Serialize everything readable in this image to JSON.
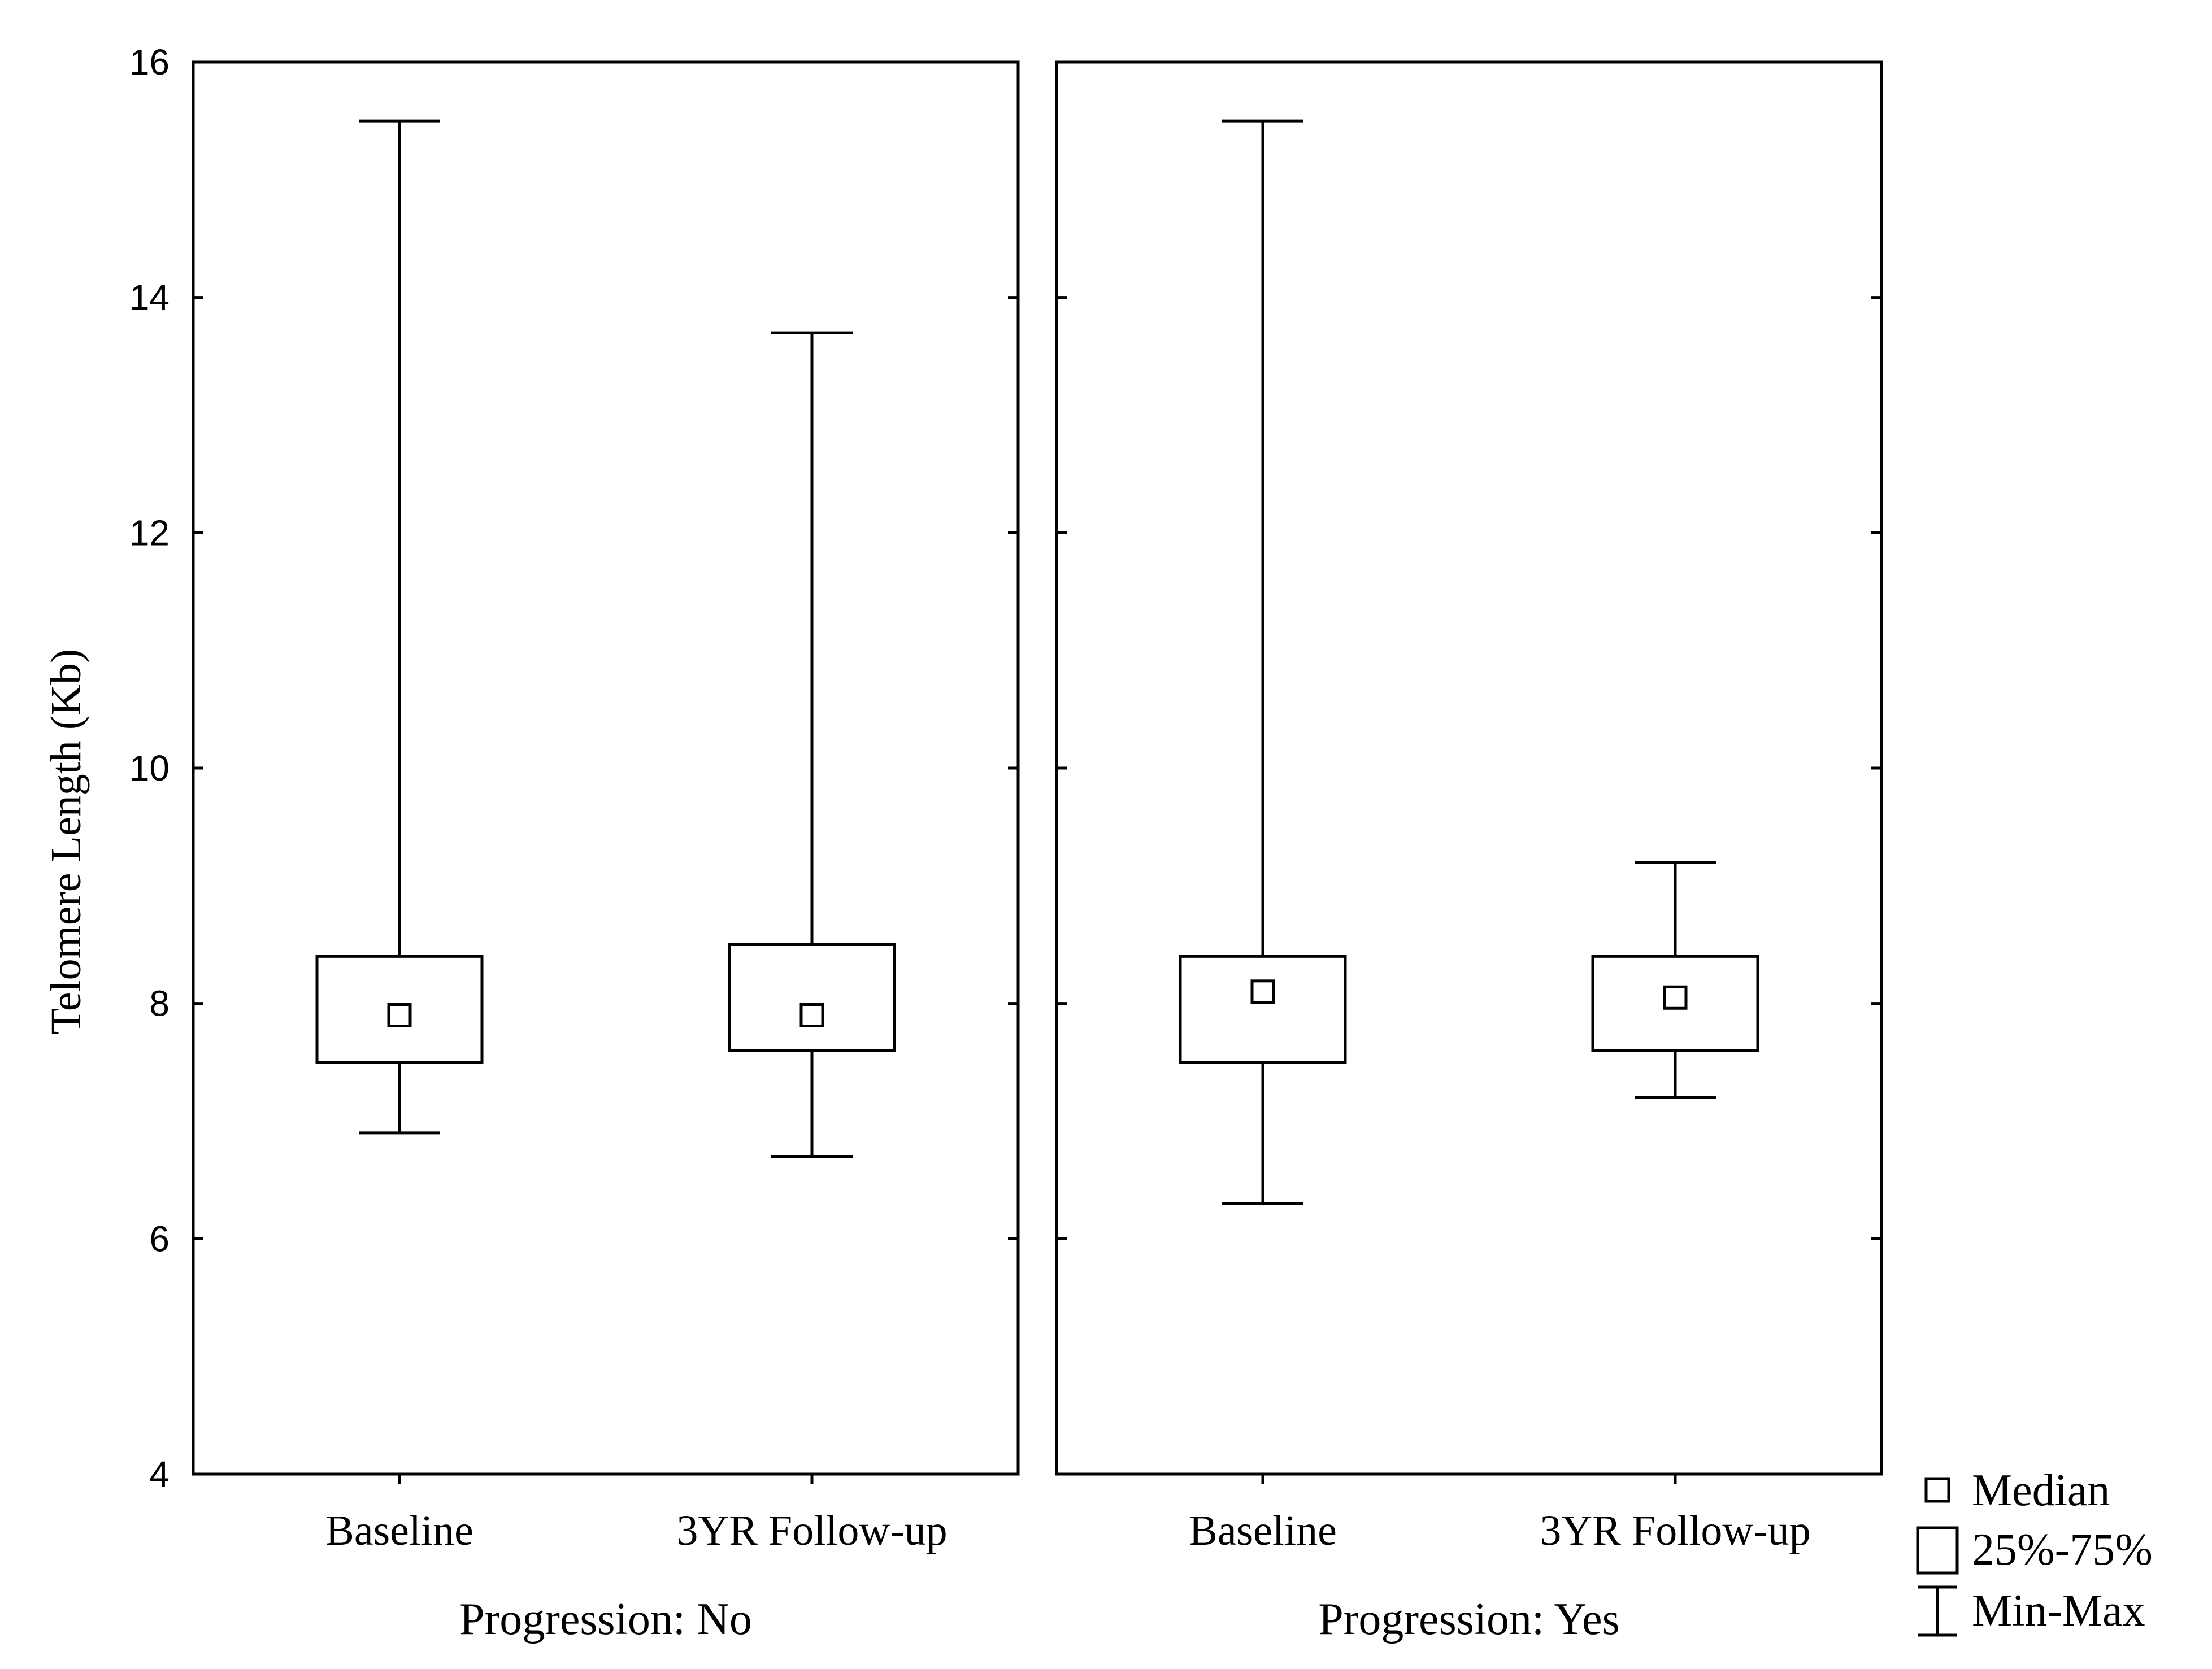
{
  "chart_data": {
    "type": "boxplot",
    "title": "",
    "ylabel": "Telomere Length (Kb)",
    "ylim": [
      4,
      16
    ],
    "yticks": [
      4,
      6,
      8,
      10,
      12,
      14,
      16
    ],
    "grid": false,
    "legend_placement": "bottom-right",
    "legend": [
      {
        "symbol": "median-square",
        "label": "Median"
      },
      {
        "symbol": "box",
        "label": "25%-75%"
      },
      {
        "symbol": "whisker",
        "label": "Min-Max"
      }
    ],
    "panels": [
      {
        "group_label": "Progression: No",
        "categories": [
          "Baseline",
          "3YR Follow-up"
        ],
        "boxes": [
          {
            "min": 6.9,
            "q1": 7.5,
            "median": 7.9,
            "q3": 8.4,
            "max": 15.5
          },
          {
            "min": 6.7,
            "q1": 7.6,
            "median": 7.9,
            "q3": 8.5,
            "max": 13.7
          }
        ]
      },
      {
        "group_label": "Progression: Yes",
        "categories": [
          "Baseline",
          "3YR Follow-up"
        ],
        "boxes": [
          {
            "min": 6.3,
            "q1": 7.5,
            "median": 8.1,
            "q3": 8.4,
            "max": 15.5
          },
          {
            "min": 7.2,
            "q1": 7.6,
            "median": 8.05,
            "q3": 8.4,
            "max": 9.2
          }
        ]
      }
    ]
  }
}
